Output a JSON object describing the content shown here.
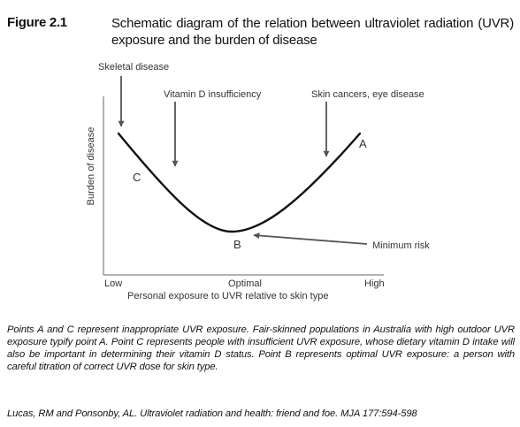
{
  "figure": {
    "label": "Figure 2.1",
    "title": "Schematic diagram of the relation between ultraviolet radiation (UVR) exposure and the burden of disease"
  },
  "diagram": {
    "annotations": {
      "skeletal": "Skeletal disease",
      "vitamin_d": "Vitamin D insufficiency",
      "skin_cancer": "Skin cancers, eye disease",
      "minimum_risk": "Minimum risk"
    },
    "points": {
      "a": "A",
      "b": "B",
      "c": "C"
    },
    "y_axis_label": "Burden of disease",
    "x_ticks": {
      "low": "Low",
      "optimal": "Optimal",
      "high": "High"
    },
    "x_axis_label": "Personal exposure to UVR relative to skin type",
    "colors": {
      "axis": "#555555",
      "curve": "#111111",
      "arrow": "#555555"
    }
  },
  "caption": "Points A and C represent inappropriate UVR exposure. Fair-skinned populations in Australia with high outdoor UVR exposure typify point A. Point C represents people with insufficient UVR exposure, whose dietary vitamin D intake  will also be important in determining their vitamin D status. Point B represents optimal UVR exposure: a person with careful titration of correct UVR dose for skin type.",
  "reference": "Lucas, RM and Ponsonby, AL. Ultraviolet radiation and health: friend and foe. MJA 177:594-598"
}
